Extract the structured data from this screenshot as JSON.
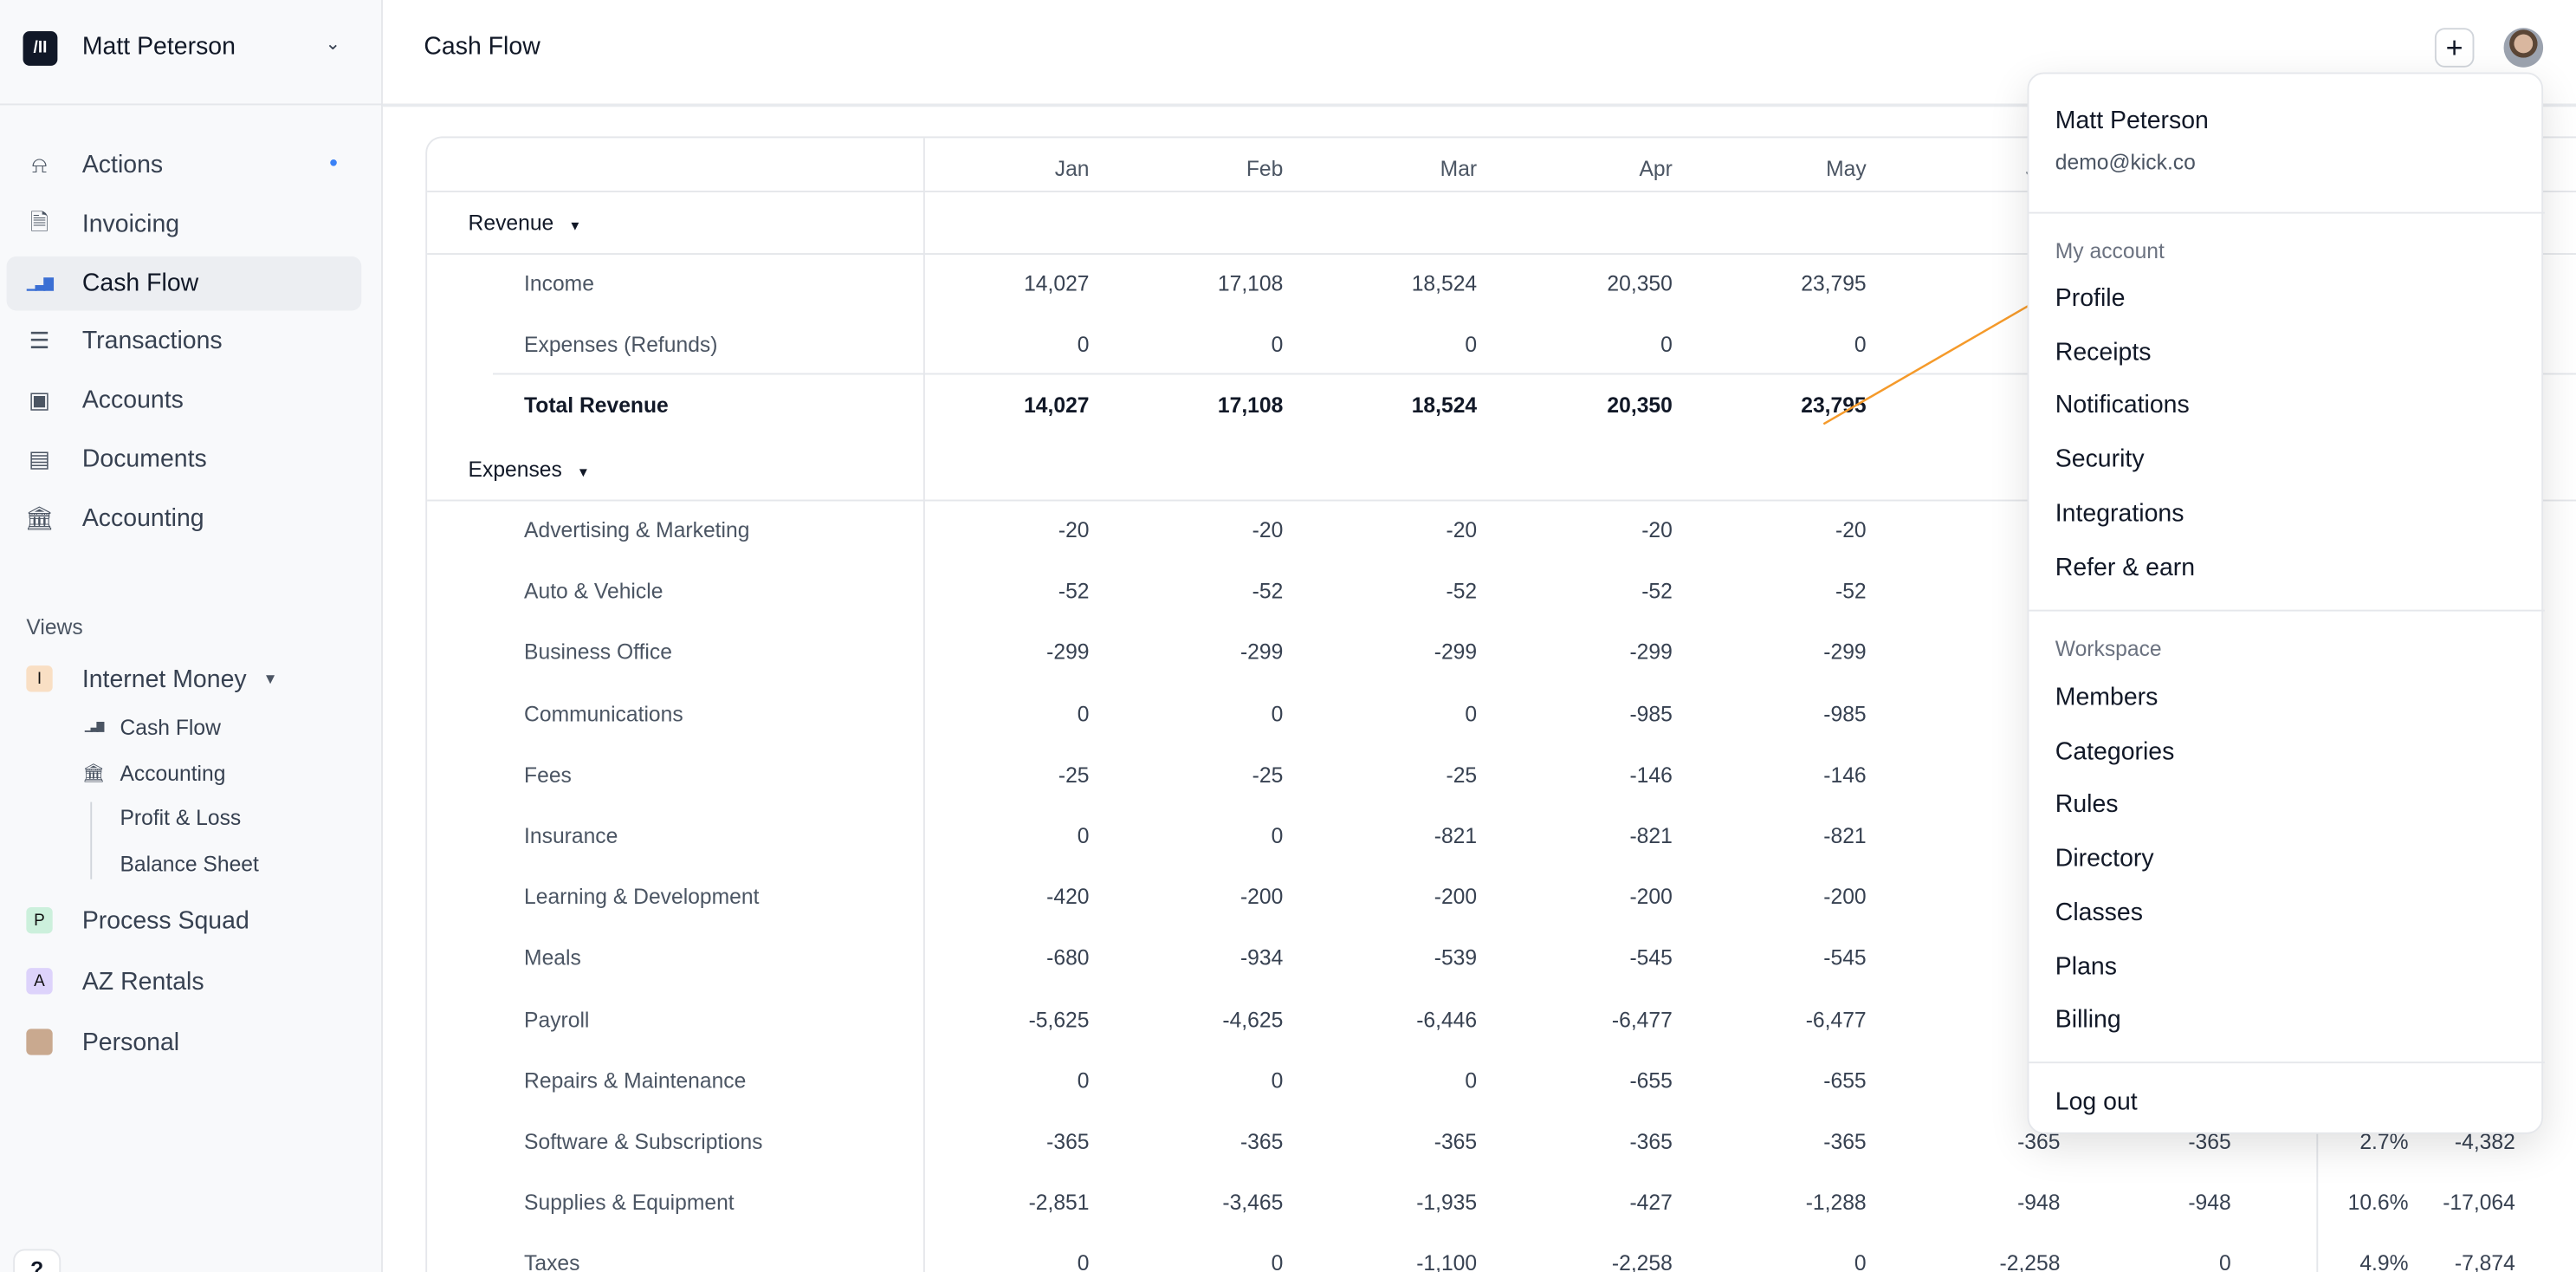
{
  "workspace": {
    "name": "Matt Peterson",
    "logo": "/II"
  },
  "nav": [
    {
      "label": "Actions",
      "icon": "bell-icon",
      "glyph": "⍾"
    },
    {
      "label": "Invoicing",
      "icon": "invoice-icon",
      "glyph": "🗎"
    },
    {
      "label": "Cash Flow",
      "icon": "bar-chart-icon",
      "glyph": "▁▃▇",
      "active": true
    },
    {
      "label": "Transactions",
      "icon": "list-icon",
      "glyph": "☰"
    },
    {
      "label": "Accounts",
      "icon": "wallet-icon",
      "glyph": "▣"
    },
    {
      "label": "Documents",
      "icon": "document-icon",
      "glyph": "▤"
    },
    {
      "label": "Accounting",
      "icon": "bank-icon",
      "glyph": "🏛"
    }
  ],
  "views": {
    "label": "Views",
    "items": [
      {
        "label": "Internet Money",
        "badge": "I",
        "color": "#f9dfc4"
      },
      {
        "label": "Process Squad",
        "badge": "P",
        "color": "#ccf0dc"
      },
      {
        "label": "AZ Rentals",
        "badge": "A",
        "color": "#ddd3fb"
      },
      {
        "label": "Personal",
        "badge": "",
        "color": "#c9a98f"
      }
    ],
    "sub": [
      {
        "label": "Cash Flow",
        "glyph": "▁▃▇"
      },
      {
        "label": "Accounting",
        "glyph": "🏛"
      },
      {
        "label": "Profit & Loss"
      },
      {
        "label": "Balance Sheet"
      }
    ]
  },
  "help": "?",
  "header": {
    "title": "Cash Flow",
    "plus": "+"
  },
  "table": {
    "months": [
      "Jan",
      "Feb",
      "Mar",
      "Apr",
      "May",
      "Jun"
    ],
    "revenue": {
      "label": "Revenue",
      "rows": [
        {
          "label": "Income",
          "values": [
            "14,027",
            "17,108",
            "18,524",
            "20,350",
            "23,795"
          ]
        },
        {
          "label": "Expenses (Refunds)",
          "values": [
            "0",
            "0",
            "0",
            "0",
            "0"
          ]
        },
        {
          "label": "Total Revenue",
          "values": [
            "14,027",
            "17,108",
            "18,524",
            "20,350",
            "23,795"
          ],
          "bold": true
        }
      ]
    },
    "expenses": {
      "label": "Expenses",
      "rows": [
        {
          "label": "Advertising & Marketing",
          "values": [
            "-20",
            "-20",
            "-20",
            "-20",
            "-20"
          ]
        },
        {
          "label": "Auto & Vehicle",
          "values": [
            "-52",
            "-52",
            "-52",
            "-52",
            "-52"
          ]
        },
        {
          "label": "Business Office",
          "values": [
            "-299",
            "-299",
            "-299",
            "-299",
            "-299"
          ]
        },
        {
          "label": "Communications",
          "values": [
            "0",
            "0",
            "0",
            "-985",
            "-985"
          ]
        },
        {
          "label": "Fees",
          "values": [
            "-25",
            "-25",
            "-25",
            "-146",
            "-146"
          ]
        },
        {
          "label": "Insurance",
          "values": [
            "0",
            "0",
            "-821",
            "-821",
            "-821"
          ]
        },
        {
          "label": "Learning & Development",
          "values": [
            "-420",
            "-200",
            "-200",
            "-200",
            "-200"
          ]
        },
        {
          "label": "Meals",
          "values": [
            "-680",
            "-934",
            "-539",
            "-545",
            "-545"
          ]
        },
        {
          "label": "Payroll",
          "values": [
            "-5,625",
            "-4,625",
            "-6,446",
            "-6,477",
            "-6,477"
          ]
        },
        {
          "label": "Repairs & Maintenance",
          "values": [
            "0",
            "0",
            "0",
            "-655",
            "-655"
          ]
        },
        {
          "label": "Software & Subscriptions",
          "values": [
            "-365",
            "-365",
            "-365",
            "-365",
            "-365",
            "-365",
            "-365",
            "2.7%",
            "-4,382"
          ]
        },
        {
          "label": "Supplies & Equipment",
          "values": [
            "-2,851",
            "-3,465",
            "-1,935",
            "-427",
            "-1,288",
            "-948",
            "-948",
            "10.6%",
            "-17,064"
          ]
        },
        {
          "label": "Taxes",
          "values": [
            "0",
            "0",
            "-1,100",
            "-2,258",
            "0",
            "-2,258",
            "0",
            "4.9%",
            "-7,874"
          ]
        }
      ]
    }
  },
  "menu": {
    "name": "Matt Peterson",
    "email": "demo@kick.co",
    "account_label": "My account",
    "account": [
      "Profile",
      "Receipts",
      "Notifications",
      "Security",
      "Integrations",
      "Refer & earn"
    ],
    "workspace_label": "Workspace",
    "workspace": [
      "Members",
      "Categories",
      "Rules",
      "Directory",
      "Classes",
      "Plans",
      "Billing"
    ],
    "logout": "Log out"
  },
  "annotation_color": "#f59a2a"
}
